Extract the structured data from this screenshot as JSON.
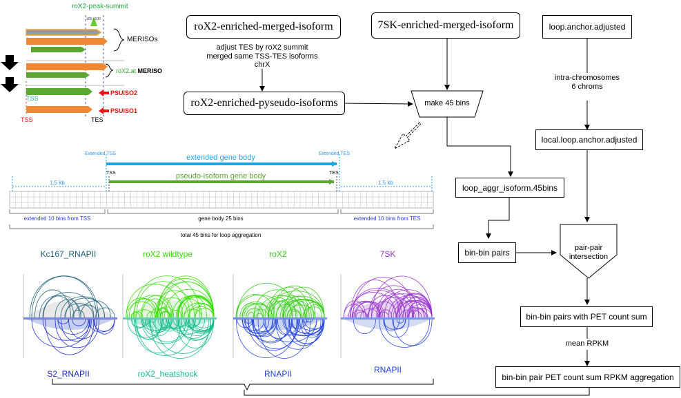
{
  "legend": {
    "summit_label": "roX2-peak-summit",
    "summit_mini": "100 ≥100",
    "merisos_label": "MERISOs",
    "roX2_at_prefix": "roX2.at.",
    "roX2_at_bold": "MERISO",
    "psuiso2": "PSUISO2",
    "psuiso1": "PSUISO1",
    "tss_green": "TSS",
    "tss_red": "TSS",
    "tes": "TES"
  },
  "flow": {
    "merged": "roX2-enriched-merged-isoform",
    "adjust_lines": [
      "adjust TES by roX2 summit",
      "merged same TSS-TES isoforms",
      "chrX"
    ],
    "pseudo": "roX2-enriched-pyseudo-isoforms",
    "sk7_merged": "7SK-enriched-merged-isoform",
    "make45": "make 45 bins",
    "loop_anchor": "loop.anchor.adjusted",
    "intra_lines": [
      "intra-chromosomes",
      "6 chroms"
    ],
    "local_loop": "local.loop.anchor.adjusted",
    "loop_aggr": "loop_aggr_isoform.45bins",
    "bin_pairs": "bin-bin pairs",
    "pair_intersect_lines": [
      "pair-pair",
      "intersection"
    ],
    "pet_sum": "bin-bin pairs with PET count sum",
    "mean_rpkm": "mean RPKM",
    "rpkm_aggr": "bin-bin pair PET count sum RPKM aggregation"
  },
  "bins": {
    "extended_tss": "Extended TSS",
    "extended_tes": "Extended TES",
    "extended_gene_body": "extended gene body",
    "pseudo_gene_body": "pseudo-isoform gene body",
    "tss": "TSS",
    "tes": "TES",
    "kb_left": "1.5 kb",
    "kb_right": "1.5 kb",
    "ext_tss_bins": "extended 10 bins from TSS",
    "gene_body_bins": "gene body 25 bins",
    "ext_tes_bins": "extended 10 bins from TES",
    "total_bins": "total 45 bins for loop aggregation"
  },
  "panels": {
    "top": [
      {
        "title": "Kc167_RNAPII",
        "color": "#1f5f7a"
      },
      {
        "title": "roX2 wildtype",
        "color": "#33dd00"
      },
      {
        "title": "roX2",
        "color": "#33cc11"
      },
      {
        "title": "7SK",
        "color": "#9933cc"
      }
    ],
    "bottom": [
      {
        "title": "S2_RNAPII",
        "color": "#1a2acc"
      },
      {
        "title": "roX2_heatshock",
        "color": "#11bb88"
      },
      {
        "title": "RNAPII",
        "color": "#2244dd"
      },
      {
        "title": "RNAPII",
        "color": "#2244dd"
      }
    ]
  },
  "colors": {
    "blue_bar": "#1aa7e8",
    "green_bar": "#5aa832",
    "orange_bar": "#ee8833",
    "red": "#ee1111",
    "dark_blue_text": "#2233cc",
    "light_blue_text": "#3399ee"
  }
}
